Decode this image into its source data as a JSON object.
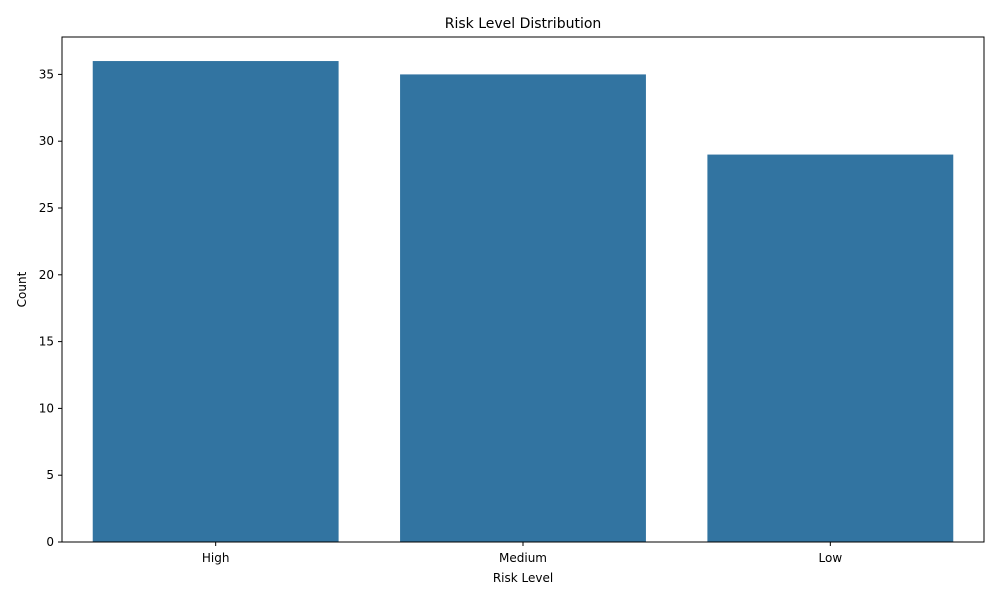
{
  "chart_data": {
    "type": "bar",
    "title": "Risk Level Distribution",
    "xlabel": "Risk Level",
    "ylabel": "Count",
    "categories": [
      "High",
      "Medium",
      "Low"
    ],
    "values": [
      36,
      35,
      29
    ],
    "ylim": [
      0,
      37.8
    ],
    "yticks": [
      0,
      5,
      10,
      15,
      20,
      25,
      30,
      35
    ],
    "grid": false,
    "bar_color": "#3274a1"
  }
}
